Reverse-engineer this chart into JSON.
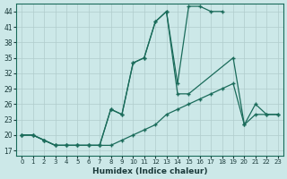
{
  "xlabel": "Humidex (Indice chaleur)",
  "ylabel": "",
  "background_color": "#cce8e8",
  "line_color": "#1a6b5a",
  "grid_color": "#b0cccc",
  "xlim": [
    -0.5,
    23.5
  ],
  "ylim": [
    16,
    45.5
  ],
  "yticks": [
    17,
    20,
    23,
    26,
    29,
    32,
    35,
    38,
    41,
    44
  ],
  "xticks": [
    0,
    1,
    2,
    3,
    4,
    5,
    6,
    7,
    8,
    9,
    10,
    11,
    12,
    13,
    14,
    15,
    16,
    17,
    18,
    19,
    20,
    21,
    22,
    23
  ],
  "series": [
    {
      "x": [
        0,
        1,
        2,
        3,
        4,
        5,
        6,
        7,
        8,
        9,
        10,
        11,
        12,
        13,
        14,
        15,
        16,
        17,
        18
      ],
      "y": [
        20,
        20,
        19,
        18,
        18,
        18,
        18,
        18,
        25,
        24,
        34,
        35,
        42,
        44,
        30,
        45,
        45,
        44,
        44
      ]
    },
    {
      "x": [
        0,
        1,
        2,
        3,
        4,
        5,
        6,
        7,
        8,
        9,
        10,
        11,
        12,
        13,
        14,
        15,
        19,
        20,
        21,
        22,
        23
      ],
      "y": [
        20,
        20,
        19,
        18,
        18,
        18,
        18,
        18,
        25,
        24,
        34,
        35,
        42,
        44,
        28,
        28,
        35,
        22,
        26,
        24,
        24
      ]
    },
    {
      "x": [
        0,
        1,
        2,
        3,
        4,
        5,
        6,
        7,
        8,
        9,
        10,
        11,
        12,
        13,
        14,
        15,
        16,
        17,
        18,
        19,
        20,
        21,
        22,
        23
      ],
      "y": [
        20,
        20,
        19,
        18,
        18,
        18,
        18,
        18,
        18,
        19,
        20,
        21,
        22,
        24,
        25,
        26,
        27,
        28,
        29,
        30,
        22,
        24,
        24,
        24
      ]
    }
  ]
}
